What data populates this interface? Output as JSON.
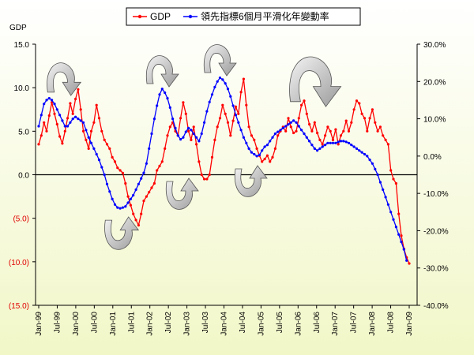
{
  "chart_data": {
    "type": "line",
    "title": "",
    "y_left_label": "GDP",
    "y_left_ticks": [
      "15.0",
      "10.0",
      "5.0",
      "0.0",
      "(5.0)",
      "(10.0)",
      "(15.0)"
    ],
    "y_left_range": [
      -15,
      15
    ],
    "y_right_ticks": [
      "30.0%",
      "20.0%",
      "10.0%",
      "0.0%",
      "-10.0%",
      "-20.0%",
      "-30.0%",
      "-40.0%"
    ],
    "y_right_range": [
      -40,
      30
    ],
    "x_start": "1999-01",
    "x_end": "2009-01",
    "x_tick_labels": [
      "Jan-99",
      "Jul-99",
      "Jan-00",
      "Jul-00",
      "Jan-01",
      "Jul-01",
      "Jan-02",
      "Jul-02",
      "Jan-03",
      "Jul-03",
      "Jan-04",
      "Jul-04",
      "Jan-05",
      "Jul-05",
      "Jan-06",
      "Jul-06",
      "Jan-07",
      "Jul-07",
      "Jan-08",
      "Jul-08",
      "Jan-09"
    ],
    "legend_position": "top",
    "grid": false,
    "background": [
      "#ffffff",
      "#f2f7c8"
    ],
    "series": [
      {
        "name": "GDP",
        "axis": "left",
        "color": "#ff0000",
        "marker": "dot",
        "values": [
          3.5,
          4.5,
          6.0,
          5.0,
          6.8,
          8.3,
          7.0,
          5.8,
          4.4,
          3.6,
          5.0,
          6.5,
          8.2,
          7.0,
          8.7,
          9.8,
          7.5,
          5.0,
          4.0,
          3.0,
          5.0,
          6.0,
          8.0,
          6.5,
          5.0,
          4.0,
          3.5,
          3.0,
          2.0,
          1.5,
          0.8,
          0.5,
          0.2,
          -1.0,
          -2.5,
          -3.5,
          -4.5,
          -5.2,
          -5.8,
          -4.5,
          -3.0,
          -2.5,
          -2.0,
          -1.5,
          -1.0,
          0.5,
          1.0,
          1.5,
          3.0,
          4.5,
          5.5,
          6.0,
          5.0,
          4.5,
          6.5,
          8.3,
          7.0,
          5.0,
          4.0,
          5.5,
          3.5,
          1.5,
          0.0,
          -0.5,
          -0.5,
          0.0,
          2.0,
          4.0,
          5.5,
          6.5,
          8.0,
          7.0,
          6.0,
          4.5,
          6.2,
          7.8,
          7.0,
          9.5,
          11.0,
          8.0,
          5.5,
          4.5,
          4.0,
          3.0,
          2.2,
          1.5,
          1.8,
          2.2,
          1.5,
          2.0,
          3.0,
          4.5,
          5.0,
          5.5,
          5.0,
          6.5,
          5.5,
          4.8,
          5.0,
          6.5,
          8.0,
          8.5,
          7.0,
          5.8,
          5.0,
          6.0,
          4.8,
          4.0,
          3.5,
          4.5,
          5.5,
          5.0,
          4.0,
          5.2,
          3.5,
          4.5,
          5.0,
          6.2,
          5.0,
          6.0,
          7.5,
          8.5,
          8.2,
          7.0,
          6.5,
          5.0,
          6.5,
          7.5,
          6.0,
          5.0,
          5.5,
          4.5,
          4.0,
          3.5,
          0.5,
          -0.5,
          -1.0,
          -4.5,
          -7.0,
          -8.5,
          -9.5,
          -10.2
        ]
      },
      {
        "name": "領先指標6個月平滑化年變動率",
        "axis": "right",
        "color": "#0000ff",
        "marker": "dot",
        "values": [
          8.0,
          11.0,
          14.0,
          15.0,
          15.5,
          15.0,
          14.0,
          12.5,
          11.0,
          9.5,
          8.0,
          8.0,
          9.0,
          10.0,
          10.5,
          10.0,
          9.5,
          9.0,
          7.0,
          5.0,
          3.5,
          2.0,
          0.5,
          -1.0,
          -3.0,
          -5.0,
          -7.5,
          -9.5,
          -11.5,
          -13.0,
          -13.8,
          -14.0,
          -13.8,
          -13.5,
          -12.5,
          -11.5,
          -10.5,
          -9.0,
          -7.5,
          -6.0,
          -4.5,
          -2.0,
          2.0,
          6.0,
          10.0,
          13.5,
          16.5,
          18.0,
          17.0,
          15.5,
          13.0,
          10.0,
          7.5,
          5.5,
          4.5,
          5.0,
          6.5,
          7.5,
          7.0,
          6.0,
          5.0,
          4.0,
          6.0,
          9.0,
          12.0,
          14.5,
          16.5,
          18.5,
          20.0,
          21.0,
          20.5,
          19.5,
          18.0,
          16.0,
          13.5,
          11.0,
          9.0,
          7.0,
          5.0,
          3.5,
          2.0,
          1.0,
          0.5,
          0.0,
          0.3,
          1.5,
          2.5,
          3.0,
          4.0,
          5.0,
          6.0,
          6.5,
          7.0,
          7.5,
          8.0,
          8.5,
          9.0,
          9.5,
          9.0,
          8.0,
          7.0,
          6.0,
          5.0,
          4.0,
          3.0,
          2.0,
          1.5,
          2.0,
          2.5,
          3.0,
          3.5,
          3.5,
          3.5,
          3.5,
          3.8,
          4.0,
          4.0,
          3.8,
          3.5,
          3.0,
          2.5,
          2.0,
          1.5,
          1.0,
          0.5,
          0.0,
          -1.0,
          -2.0,
          -3.5,
          -5.0,
          -7.0,
          -9.0,
          -11.0,
          -13.0,
          -15.0,
          -17.0,
          -19.0,
          -21.0,
          -23.0,
          -25.0,
          -28.0
        ]
      }
    ]
  }
}
